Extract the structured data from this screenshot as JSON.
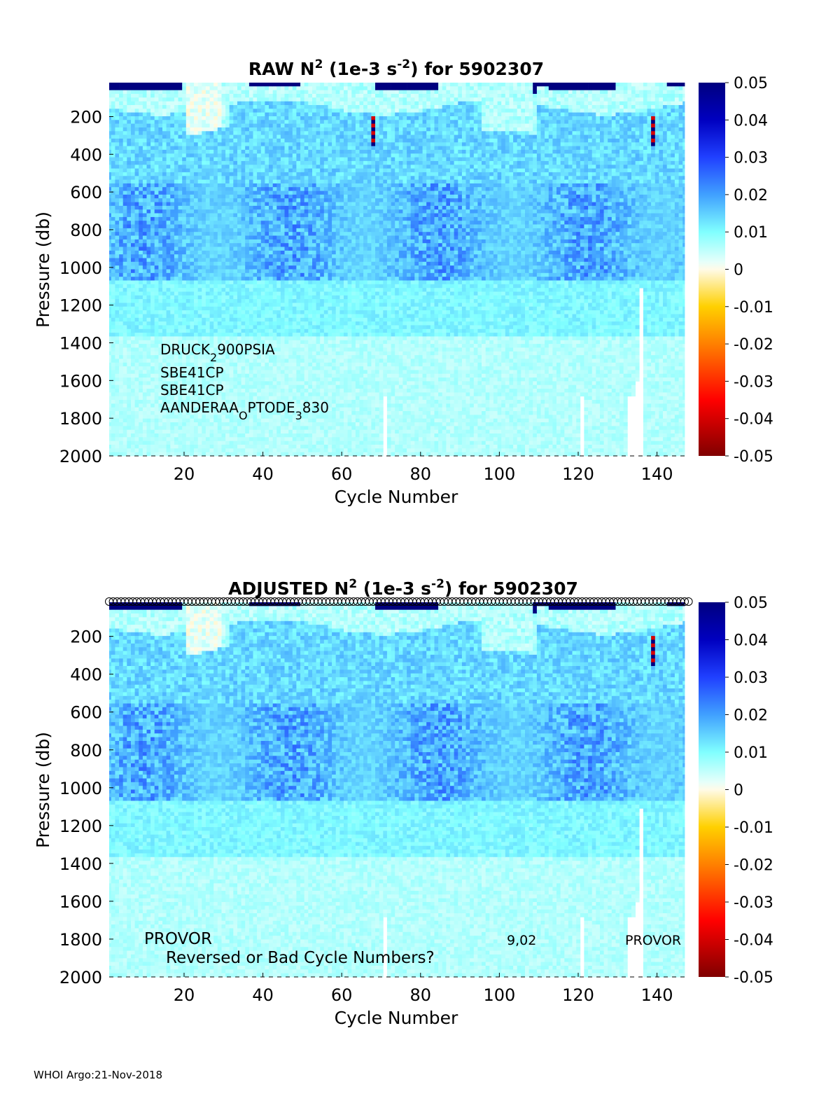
{
  "footer": "WHOI Argo:21-Nov-2018",
  "colormap": {
    "name": "jet-reversed",
    "stops": [
      "#800000",
      "#ff0000",
      "#ff8000",
      "#ffd000",
      "#fffbe8",
      "#e6fffa",
      "#80ffff",
      "#40a0ff",
      "#2040ff",
      "#0000c0",
      "#00007f"
    ]
  },
  "chart_data": [
    {
      "type": "heatmap",
      "title_prefix": "RAW N",
      "title_sup1": "2",
      "title_mid": " (1e-3 s",
      "title_sup2": "-2",
      "title_suffix": ") for 5902307",
      "xlabel": "Cycle Number",
      "ylabel": "Pressure (db)",
      "xlim": [
        1,
        147
      ],
      "ylim": [
        2000,
        20
      ],
      "x_ticks": [
        "20",
        "40",
        "60",
        "80",
        "100",
        "120",
        "140"
      ],
      "x_tick_values": [
        20,
        40,
        60,
        80,
        100,
        120,
        140
      ],
      "y_ticks": [
        "200",
        "400",
        "600",
        "800",
        "1000",
        "1200",
        "1400",
        "1600",
        "1800",
        "2000"
      ],
      "y_tick_values": [
        200,
        400,
        600,
        800,
        1000,
        1200,
        1400,
        1600,
        1800,
        2000
      ],
      "colorbar": {
        "min": -0.05,
        "max": 0.05,
        "ticks": [
          "0.05",
          "0.04",
          "0.03",
          "0.02",
          "0.01",
          "0",
          "-0.01",
          "-0.02",
          "-0.03",
          "-0.04",
          "-0.05"
        ],
        "tick_values": [
          0.05,
          0.04,
          0.03,
          0.02,
          0.01,
          0,
          -0.01,
          -0.02,
          -0.03,
          -0.04,
          -0.05
        ]
      },
      "annotations": [
        {
          "base": "DRUCK",
          "sub": "2",
          "rest": "900PSIA"
        },
        {
          "base": "SBE41CP",
          "sub": "",
          "rest": ""
        },
        {
          "base": "SBE41CP",
          "sub": "",
          "rest": ""
        },
        {
          "base": "AANDERAA",
          "sub": "O",
          "rest": "PTODE",
          "sub2": "3",
          "rest2": "830"
        }
      ],
      "features": {
        "surface_stratification": 0.05,
        "pycnocline_pressure_db": [
          600,
          1000
        ],
        "pycnocline_value": 0.018,
        "deep_value": 0.004,
        "missing_data_columns": [
          71,
          121,
          133,
          134,
          135,
          136
        ],
        "negative_spikes_cycles": [
          68,
          139
        ]
      }
    },
    {
      "type": "heatmap",
      "title_prefix": "ADJUSTED N",
      "title_sup1": "2",
      "title_mid": " (1e-3 s",
      "title_sup2": "-2",
      "title_suffix": ") for 5902307",
      "xlabel": "Cycle Number",
      "ylabel": "Pressure (db)",
      "xlim": [
        1,
        147
      ],
      "ylim": [
        2000,
        20
      ],
      "x_ticks": [
        "20",
        "40",
        "60",
        "80",
        "100",
        "120",
        "140"
      ],
      "x_tick_values": [
        20,
        40,
        60,
        80,
        100,
        120,
        140
      ],
      "y_ticks": [
        "200",
        "400",
        "600",
        "800",
        "1000",
        "1200",
        "1400",
        "1600",
        "1800",
        "2000"
      ],
      "y_tick_values": [
        200,
        400,
        600,
        800,
        1000,
        1200,
        1400,
        1600,
        1800,
        2000
      ],
      "colorbar": {
        "min": -0.05,
        "max": 0.05,
        "ticks": [
          "0.05",
          "0.04",
          "0.03",
          "0.02",
          "0.01",
          "0",
          "-0.01",
          "-0.02",
          "-0.03",
          "-0.04",
          "-0.05"
        ],
        "tick_values": [
          0.05,
          0.04,
          0.03,
          0.02,
          0.01,
          0,
          -0.01,
          -0.02,
          -0.03,
          -0.04,
          -0.05
        ]
      },
      "annotations_plain": [
        "PROVOR",
        "Reversed or Bad Cycle Numbers?",
        "9,02",
        "PROVOR"
      ],
      "features": {
        "cycle_markers": "o",
        "surface_stratification": 0.05,
        "pycnocline_pressure_db": [
          600,
          1000
        ],
        "pycnocline_value": 0.018,
        "deep_value": 0.004,
        "missing_data_columns": [
          71,
          121,
          133,
          134,
          135,
          136
        ],
        "negative_spikes_cycles": [
          139
        ]
      }
    }
  ]
}
